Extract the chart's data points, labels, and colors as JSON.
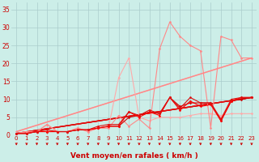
{
  "background_color": "#cceee8",
  "grid_color": "#aacccc",
  "xlim": [
    -0.5,
    23.5
  ],
  "ylim": [
    0,
    37
  ],
  "xtick_labels": [
    "0",
    "1",
    "2",
    "3",
    "4",
    "5",
    "6",
    "7",
    "8",
    "9",
    "10",
    "11",
    "12",
    "13",
    "14",
    "15",
    "16",
    "17",
    "18",
    "19",
    "20",
    "21",
    "22",
    "23"
  ],
  "xticks": [
    0,
    1,
    2,
    3,
    4,
    5,
    6,
    7,
    8,
    9,
    10,
    11,
    12,
    13,
    14,
    15,
    16,
    17,
    18,
    19,
    20,
    21,
    22,
    23
  ],
  "yticks": [
    0,
    5,
    10,
    15,
    20,
    25,
    30,
    35
  ],
  "xlabel": "Vent moyen/en rafales ( km/h )",
  "xlabel_color": "#cc0000",
  "tick_color": "#cc0000",
  "lines": [
    {
      "color": "#ffaaaa",
      "lw": 0.8,
      "marker": "D",
      "ms": 1.5,
      "data_x": [
        0,
        1,
        2,
        3,
        4,
        5,
        6,
        7,
        8,
        9,
        10,
        11,
        12,
        13,
        14,
        15,
        16,
        17,
        18,
        19,
        20,
        21,
        22,
        23
      ],
      "data_y": [
        0.5,
        1.0,
        1.0,
        3.0,
        1.0,
        1.0,
        2.0,
        1.0,
        2.0,
        2.0,
        16.0,
        21.5,
        5.0,
        4.0,
        5.0,
        5.0,
        5.0,
        5.5,
        6.0,
        6.0,
        5.5,
        6.0,
        6.0,
        6.0
      ]
    },
    {
      "color": "#ffaaaa",
      "lw": 1.0,
      "marker": null,
      "data_x": [
        0,
        23
      ],
      "data_y": [
        1.0,
        21.5
      ]
    },
    {
      "color": "#ff8888",
      "lw": 0.8,
      "marker": "D",
      "ms": 1.5,
      "data_x": [
        0,
        1,
        2,
        3,
        4,
        5,
        6,
        7,
        8,
        9,
        10,
        11,
        12,
        13,
        14,
        15,
        16,
        17,
        18,
        19,
        20,
        21,
        22,
        23
      ],
      "data_y": [
        0.5,
        1.0,
        1.0,
        3.0,
        1.0,
        1.0,
        2.0,
        1.0,
        2.0,
        2.0,
        5.5,
        2.5,
        4.5,
        2.0,
        24.0,
        31.5,
        27.5,
        25.0,
        23.5,
        2.0,
        27.5,
        26.5,
        21.5,
        21.5
      ]
    },
    {
      "color": "#ff8888",
      "lw": 1.0,
      "marker": null,
      "data_x": [
        0,
        23
      ],
      "data_y": [
        1.0,
        21.5
      ]
    },
    {
      "color": "#cc0000",
      "lw": 0.8,
      "marker": "D",
      "ms": 1.5,
      "data_x": [
        0,
        1,
        2,
        3,
        4,
        5,
        6,
        7,
        8,
        9,
        10,
        11,
        12,
        13,
        14,
        15,
        16,
        17,
        18,
        19,
        20,
        21,
        22,
        23
      ],
      "data_y": [
        0.5,
        0.5,
        1.0,
        1.0,
        1.0,
        1.0,
        1.5,
        1.5,
        2.0,
        2.5,
        2.5,
        5.0,
        5.5,
        6.5,
        6.0,
        10.5,
        8.0,
        9.0,
        9.0,
        9.0,
        4.0,
        9.5,
        10.0,
        10.5
      ]
    },
    {
      "color": "#cc0000",
      "lw": 1.0,
      "marker": null,
      "data_x": [
        0,
        23
      ],
      "data_y": [
        0.5,
        10.5
      ]
    },
    {
      "color": "#ff0000",
      "lw": 0.8,
      "marker": "D",
      "ms": 1.5,
      "data_x": [
        0,
        1,
        2,
        3,
        4,
        5,
        6,
        7,
        8,
        9,
        10,
        11,
        12,
        13,
        14,
        15,
        16,
        17,
        18,
        19,
        20,
        21,
        22,
        23
      ],
      "data_y": [
        0.5,
        0.5,
        1.0,
        1.0,
        1.0,
        1.0,
        1.5,
        1.5,
        2.0,
        2.5,
        2.5,
        6.5,
        5.0,
        6.5,
        5.5,
        10.5,
        7.0,
        9.5,
        8.0,
        8.5,
        4.0,
        9.5,
        10.5,
        10.5
      ]
    },
    {
      "color": "#ff0000",
      "lw": 1.0,
      "marker": null,
      "data_x": [
        0,
        23
      ],
      "data_y": [
        0.5,
        10.5
      ]
    },
    {
      "color": "#dd1111",
      "lw": 0.8,
      "marker": "D",
      "ms": 1.5,
      "data_x": [
        0,
        1,
        2,
        3,
        4,
        5,
        6,
        7,
        8,
        9,
        10,
        11,
        12,
        13,
        14,
        15,
        16,
        17,
        18,
        19,
        20,
        21,
        22,
        23
      ],
      "data_y": [
        0.5,
        0.5,
        1.0,
        1.5,
        1.0,
        1.0,
        1.5,
        1.5,
        2.5,
        3.0,
        3.0,
        6.5,
        5.5,
        7.0,
        6.0,
        10.5,
        7.5,
        10.5,
        9.0,
        9.0,
        4.5,
        10.0,
        10.5,
        10.5
      ]
    },
    {
      "color": "#dd1111",
      "lw": 1.0,
      "marker": null,
      "data_x": [
        0,
        23
      ],
      "data_y": [
        0.5,
        10.5
      ]
    }
  ],
  "figsize": [
    3.2,
    2.0
  ],
  "dpi": 100
}
